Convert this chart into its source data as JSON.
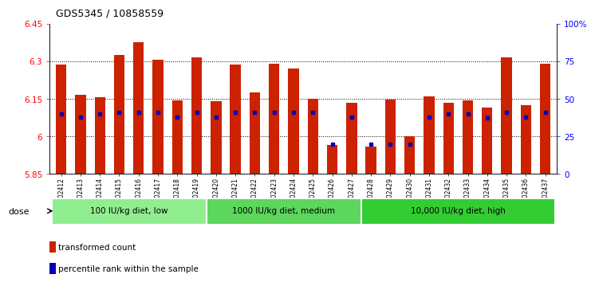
{
  "title": "GDS5345 / 10858559",
  "samples": [
    "GSM1502412",
    "GSM1502413",
    "GSM1502414",
    "GSM1502415",
    "GSM1502416",
    "GSM1502417",
    "GSM1502418",
    "GSM1502419",
    "GSM1502420",
    "GSM1502421",
    "GSM1502422",
    "GSM1502423",
    "GSM1502424",
    "GSM1502425",
    "GSM1502426",
    "GSM1502427",
    "GSM1502428",
    "GSM1502429",
    "GSM1502430",
    "GSM1502431",
    "GSM1502432",
    "GSM1502433",
    "GSM1502434",
    "GSM1502435",
    "GSM1502436",
    "GSM1502437"
  ],
  "bar_values": [
    6.285,
    6.165,
    6.155,
    6.325,
    6.375,
    6.305,
    6.145,
    6.315,
    6.14,
    6.285,
    6.175,
    6.29,
    6.27,
    6.15,
    5.965,
    6.135,
    5.96,
    6.148,
    6.0,
    6.16,
    6.135,
    6.145,
    6.115,
    6.315,
    6.125,
    6.29
  ],
  "blue_dot_percentile": [
    40,
    38,
    40,
    41,
    41,
    41,
    38,
    41,
    38,
    41,
    41,
    41,
    41,
    41,
    20,
    38,
    20,
    20,
    20,
    38,
    40,
    40,
    37,
    41,
    38,
    41
  ],
  "groups": [
    {
      "label": "100 IU/kg diet, low",
      "start": 0,
      "end": 8,
      "color": "#90EE90"
    },
    {
      "label": "1000 IU/kg diet, medium",
      "start": 8,
      "end": 16,
      "color": "#5CD65C"
    },
    {
      "label": "10,000 IU/kg diet, high",
      "start": 16,
      "end": 26,
      "color": "#33CC33"
    }
  ],
  "ymin": 5.85,
  "ymax": 6.45,
  "yticks": [
    5.85,
    6.0,
    6.15,
    6.3,
    6.45
  ],
  "ytick_labels": [
    "5.85",
    "6",
    "6.15",
    "6.3",
    "6.45"
  ],
  "bar_color": "#CC2200",
  "blue_color": "#0000BB",
  "bar_width": 0.55,
  "plot_bg": "#FFFFFF",
  "legend_transformed": "transformed count",
  "legend_percentile": "percentile rank within the sample",
  "dose_label": "dose",
  "right_yticks": [
    0,
    25,
    50,
    75,
    100
  ],
  "right_ytick_labels": [
    "0",
    "25",
    "50",
    "75",
    "100%"
  ]
}
